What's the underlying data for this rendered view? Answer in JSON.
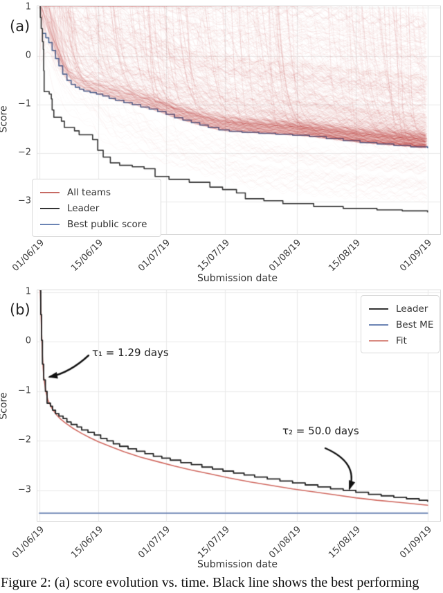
{
  "figure": {
    "caption": "Figure 2: (a) score evolution vs. time. Black line shows the best performing"
  },
  "chart_data": [
    {
      "type": "line",
      "panel_label": "(a)",
      "xlabel": "Submission date",
      "ylabel": "Score",
      "x_tick_labels": [
        "01/06/19",
        "15/06/19",
        "01/07/19",
        "15/07/19",
        "01/08/19",
        "15/08/19",
        "01/09/19"
      ],
      "x_tick_days": [
        0,
        14,
        30,
        44,
        61,
        75,
        92
      ],
      "y_tick_labels": [
        "1",
        "0",
        "−1",
        "−2",
        "−3"
      ],
      "y_ticks": [
        1,
        0,
        -1,
        -2,
        -3
      ],
      "ylim": [
        -3.67,
        1.03
      ],
      "grid": true,
      "legend": {
        "position": "lower left",
        "entries": [
          {
            "label": "All teams",
            "color": "#c66a63"
          },
          {
            "label": "Leader",
            "color": "#333333"
          },
          {
            "label": "Best public score",
            "color": "#6b84b4"
          }
        ]
      },
      "series": [
        {
          "name": "Leader",
          "type": "step",
          "color": "#333333",
          "points": [
            [
              0,
              1.05
            ],
            [
              0.2,
              0.8
            ],
            [
              0.4,
              0.57
            ],
            [
              0.7,
              0.3
            ],
            [
              0.9,
              0.14
            ],
            [
              1.0,
              -0.3
            ],
            [
              1.1,
              -0.73
            ],
            [
              2.3,
              -0.78
            ],
            [
              2.8,
              -0.88
            ],
            [
              3.0,
              -1.11
            ],
            [
              3.4,
              -1.26
            ],
            [
              5.2,
              -1.34
            ],
            [
              5.9,
              -1.47
            ],
            [
              8.3,
              -1.54
            ],
            [
              9.4,
              -1.62
            ],
            [
              12.6,
              -1.72
            ],
            [
              13.8,
              -1.94
            ],
            [
              15.1,
              -2.08
            ],
            [
              16.8,
              -2.2
            ],
            [
              19,
              -2.25
            ],
            [
              22,
              -2.28
            ],
            [
              24.8,
              -2.32
            ],
            [
              27.4,
              -2.48
            ],
            [
              30.7,
              -2.54
            ],
            [
              35.5,
              -2.6
            ],
            [
              40.4,
              -2.7
            ],
            [
              43.4,
              -2.75
            ],
            [
              46.7,
              -2.82
            ],
            [
              48.8,
              -2.94
            ],
            [
              53.2,
              -2.98
            ],
            [
              57.7,
              -3.04
            ],
            [
              65,
              -3.1
            ],
            [
              72,
              -3.14
            ],
            [
              80,
              -3.17
            ],
            [
              86,
              -3.19
            ],
            [
              92,
              -3.22
            ]
          ]
        },
        {
          "name": "Best public score",
          "type": "step",
          "color": "#6b84b4",
          "points": [
            [
              0.7,
              0.47
            ],
            [
              1.5,
              0.38
            ],
            [
              2.2,
              0.28
            ],
            [
              3,
              0.12
            ],
            [
              3.8,
              -0.05
            ],
            [
              4.6,
              -0.2
            ],
            [
              5.5,
              -0.37
            ],
            [
              6.5,
              -0.5
            ],
            [
              7.5,
              -0.58
            ],
            [
              8.5,
              -0.64
            ],
            [
              9.5,
              -0.68
            ],
            [
              10.5,
              -0.72
            ],
            [
              12,
              -0.75
            ],
            [
              13.5,
              -0.78
            ],
            [
              15,
              -0.82
            ],
            [
              16.5,
              -0.87
            ],
            [
              18,
              -0.91
            ],
            [
              20,
              -0.96
            ],
            [
              22,
              -1.0
            ],
            [
              24,
              -1.05
            ],
            [
              26,
              -1.09
            ],
            [
              28,
              -1.14
            ],
            [
              30,
              -1.2
            ],
            [
              32,
              -1.27
            ],
            [
              34,
              -1.32
            ],
            [
              36,
              -1.37
            ],
            [
              38,
              -1.42
            ],
            [
              40,
              -1.47
            ],
            [
              42.5,
              -1.52
            ],
            [
              45,
              -1.55
            ],
            [
              48,
              -1.57
            ],
            [
              52,
              -1.59
            ],
            [
              56,
              -1.61
            ],
            [
              60,
              -1.63
            ],
            [
              64,
              -1.66
            ],
            [
              68,
              -1.7
            ],
            [
              72,
              -1.74
            ],
            [
              76,
              -1.78
            ],
            [
              80,
              -1.81
            ],
            [
              84,
              -1.84
            ],
            [
              88,
              -1.87
            ],
            [
              92,
              -1.9
            ]
          ]
        },
        {
          "name": "All teams",
          "type": "ensemble",
          "color": "#c44e52",
          "count": 560,
          "description": "Semi-transparent score trajectories of all competing teams, densest just above the best-public-score line and near score 1"
        }
      ]
    },
    {
      "type": "line",
      "panel_label": "(b)",
      "xlabel": "Submission date",
      "ylabel": "Score",
      "x_tick_labels": [
        "01/06/19",
        "15/06/19",
        "01/07/19",
        "15/07/19",
        "01/08/19",
        "15/08/19",
        "01/09/19"
      ],
      "x_tick_days": [
        0,
        14,
        30,
        44,
        61,
        75,
        92
      ],
      "y_tick_labels": [
        "1",
        "0",
        "−1",
        "−2",
        "−3"
      ],
      "y_ticks": [
        1,
        0,
        -1,
        -2,
        -3
      ],
      "ylim": [
        -3.62,
        1.04
      ],
      "grid": true,
      "legend": {
        "position": "upper right",
        "entries": [
          {
            "label": "Leader",
            "color": "#333333"
          },
          {
            "label": "Best ME",
            "color": "#6b84b4"
          },
          {
            "label": "Fit",
            "color": "#d98b82"
          }
        ]
      },
      "annotations": [
        {
          "text": "τ₁ = 1.29 days",
          "tau_days": 1.29
        },
        {
          "text": "τ₂ = 50.0 days",
          "tau_days": 50.0
        }
      ],
      "series": [
        {
          "name": "Leader",
          "type": "step",
          "color": "#222222",
          "points": [
            [
              0,
              1.05
            ],
            [
              0.3,
              0.55
            ],
            [
              0.5,
              0.03
            ],
            [
              0.7,
              -0.45
            ],
            [
              1,
              -0.77
            ],
            [
              1.4,
              -1.0
            ],
            [
              1.8,
              -1.24
            ],
            [
              2.6,
              -1.3
            ],
            [
              3.1,
              -1.38
            ],
            [
              3.8,
              -1.45
            ],
            [
              4.6,
              -1.5
            ],
            [
              5.6,
              -1.55
            ],
            [
              6.5,
              -1.62
            ],
            [
              7.5,
              -1.67
            ],
            [
              8.9,
              -1.72
            ],
            [
              10,
              -1.78
            ],
            [
              11.5,
              -1.83
            ],
            [
              13,
              -1.88
            ],
            [
              14.5,
              -1.95
            ],
            [
              16,
              -2.0
            ],
            [
              17.5,
              -2.06
            ],
            [
              19,
              -2.11
            ],
            [
              21,
              -2.16
            ],
            [
              23,
              -2.21
            ],
            [
              25,
              -2.26
            ],
            [
              27,
              -2.31
            ],
            [
              29,
              -2.35
            ],
            [
              31,
              -2.39
            ],
            [
              33.5,
              -2.44
            ],
            [
              36,
              -2.48
            ],
            [
              38.5,
              -2.53
            ],
            [
              41,
              -2.57
            ],
            [
              43.5,
              -2.61
            ],
            [
              46,
              -2.65
            ],
            [
              48.5,
              -2.69
            ],
            [
              51,
              -2.73
            ],
            [
              54,
              -2.77
            ],
            [
              57,
              -2.81
            ],
            [
              60,
              -2.85
            ],
            [
              63,
              -2.89
            ],
            [
              66,
              -2.93
            ],
            [
              69,
              -2.97
            ],
            [
              72,
              -3.0
            ],
            [
              75,
              -3.04
            ],
            [
              78,
              -3.08
            ],
            [
              81,
              -3.11
            ],
            [
              84,
              -3.14
            ],
            [
              87,
              -3.17
            ],
            [
              90,
              -3.2
            ],
            [
              92,
              -3.22
            ]
          ]
        },
        {
          "name": "Best ME",
          "type": "hline",
          "color": "#6b84b4",
          "value": -3.46
        },
        {
          "name": "Fit",
          "type": "smooth",
          "color": "#d0685f",
          "tau1_days": 1.29,
          "tau2_days": 50.0,
          "points": [
            [
              0.2,
              1.04
            ],
            [
              0.5,
              0.2
            ],
            [
              0.7,
              -0.3
            ],
            [
              1,
              -0.7
            ],
            [
              1.5,
              -1.0
            ],
            [
              2,
              -1.18
            ],
            [
              3,
              -1.35
            ],
            [
              4,
              -1.47
            ],
            [
              5,
              -1.56
            ],
            [
              6,
              -1.63
            ],
            [
              8,
              -1.75
            ],
            [
              10,
              -1.85
            ],
            [
              12,
              -1.94
            ],
            [
              14,
              -2.02
            ],
            [
              17,
              -2.12
            ],
            [
              20,
              -2.22
            ],
            [
              24,
              -2.33
            ],
            [
              28,
              -2.42
            ],
            [
              32,
              -2.51
            ],
            [
              36,
              -2.59
            ],
            [
              40,
              -2.66
            ],
            [
              45,
              -2.75
            ],
            [
              50,
              -2.83
            ],
            [
              55,
              -2.9
            ],
            [
              60,
              -2.97
            ],
            [
              65,
              -3.03
            ],
            [
              70,
              -3.09
            ],
            [
              75,
              -3.15
            ],
            [
              80,
              -3.2
            ],
            [
              85,
              -3.24
            ],
            [
              92,
              -3.3
            ]
          ]
        }
      ]
    }
  ]
}
